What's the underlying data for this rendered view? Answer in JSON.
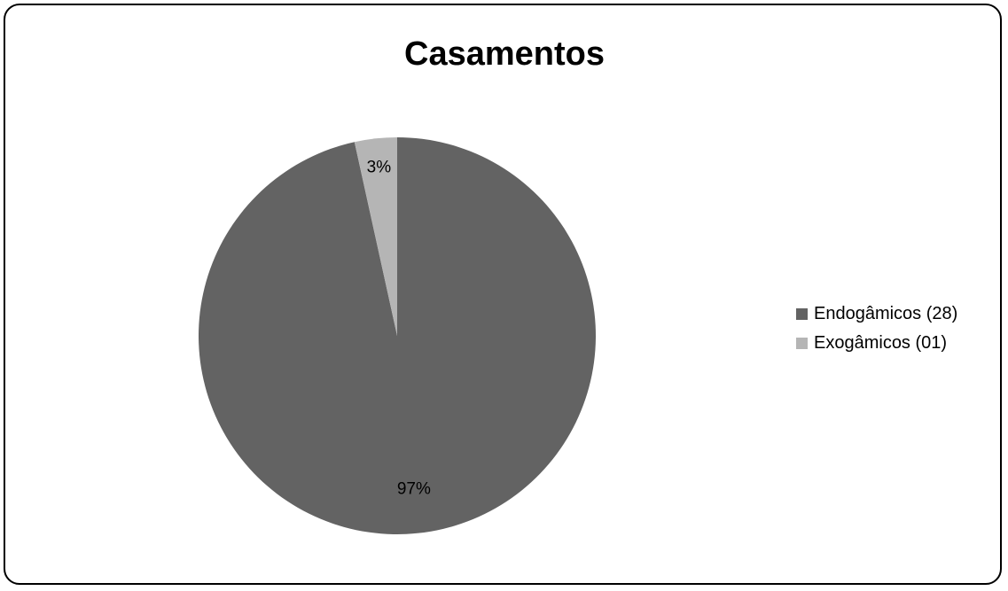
{
  "chart_data": {
    "type": "pie",
    "title": "Casamentos",
    "slices": [
      {
        "label": "Endogâmicos (28)",
        "value": 28,
        "percent_label": "97%",
        "color": "#636363"
      },
      {
        "label": "Exogâmicos (01)",
        "value": 1,
        "percent_label": "3%",
        "color": "#b5b5b5"
      }
    ],
    "legend_position": "right"
  }
}
